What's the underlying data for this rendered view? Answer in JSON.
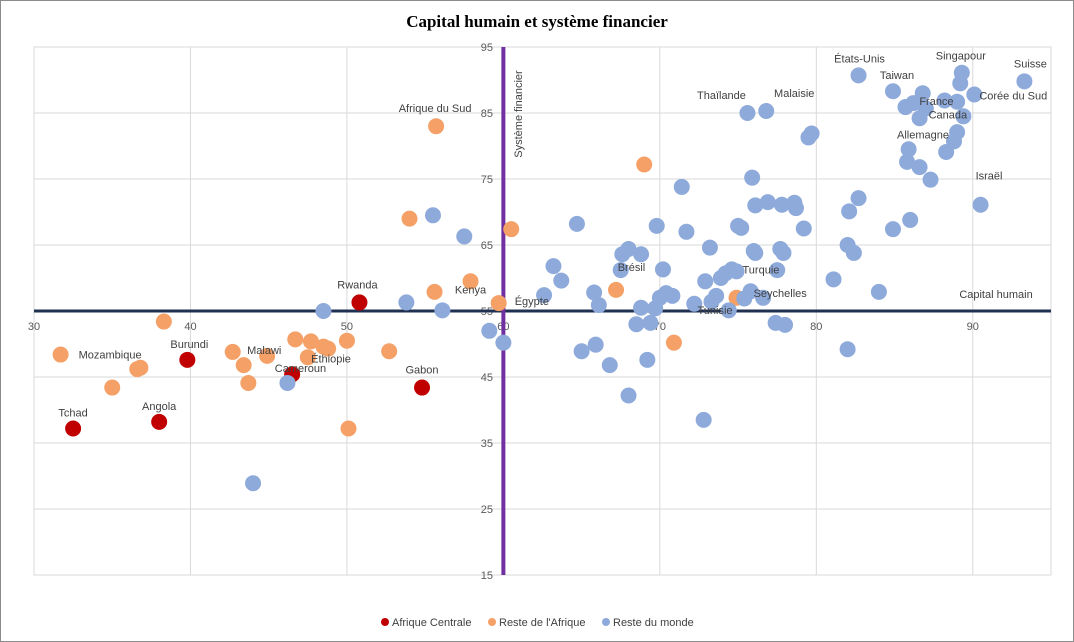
{
  "chart_data": {
    "type": "scatter",
    "title": "Capital humain  et système financier",
    "xlabel": "Capital humain",
    "ylabel": "Système financier",
    "xlim": [
      30,
      95
    ],
    "ylim": [
      15,
      95
    ],
    "x_ticks": [
      "30",
      "40",
      "50",
      "60",
      "70",
      "80",
      "90"
    ],
    "y_ticks": [
      "15",
      "25",
      "35",
      "45",
      "55",
      "65",
      "75",
      "85",
      "95"
    ],
    "crosshair": {
      "x": 60,
      "y": 55
    },
    "grid": true,
    "legend_position": "bottom",
    "colors": {
      "Afrique Centrale": "#C00000",
      "Reste de l'Afrique": "#F4A066",
      "Reste du monde": "#8EAADB",
      "vertical_axis": "#7030A0",
      "horizontal_axis": "#1F3050"
    },
    "series": [
      {
        "name": "Afrique Centrale",
        "points": [
          {
            "x": 32.5,
            "y": 37.2,
            "label": "Tchad"
          },
          {
            "x": 38.0,
            "y": 38.2,
            "label": "Angola"
          },
          {
            "x": 39.8,
            "y": 47.6,
            "label": "Burundi"
          },
          {
            "x": 46.5,
            "y": 45.4,
            "label": ""
          },
          {
            "x": 50.8,
            "y": 56.3,
            "label": "Rwanda"
          },
          {
            "x": 54.8,
            "y": 43.4,
            "label": "Gabon"
          }
        ]
      },
      {
        "name": "Reste de l'Afrique",
        "points": [
          {
            "x": 31.7,
            "y": 48.4,
            "label": "Mozambique"
          },
          {
            "x": 35.0,
            "y": 43.4,
            "label": ""
          },
          {
            "x": 36.6,
            "y": 46.2,
            "label": ""
          },
          {
            "x": 36.8,
            "y": 46.4,
            "label": ""
          },
          {
            "x": 38.3,
            "y": 53.4,
            "label": ""
          },
          {
            "x": 42.7,
            "y": 48.8,
            "label": ""
          },
          {
            "x": 43.4,
            "y": 46.8,
            "label": ""
          },
          {
            "x": 43.7,
            "y": 44.1,
            "label": ""
          },
          {
            "x": 44.9,
            "y": 48.2,
            "label": "Malawi"
          },
          {
            "x": 46.7,
            "y": 50.7,
            "label": ""
          },
          {
            "x": 47.5,
            "y": 48.0,
            "label": "Cameroun"
          },
          {
            "x": 47.7,
            "y": 50.4,
            "label": ""
          },
          {
            "x": 48.5,
            "y": 49.6,
            "label": ""
          },
          {
            "x": 48.8,
            "y": 49.3,
            "label": "Éthiopie"
          },
          {
            "x": 50.0,
            "y": 50.5,
            "label": ""
          },
          {
            "x": 50.1,
            "y": 37.2,
            "label": ""
          },
          {
            "x": 52.7,
            "y": 48.9,
            "label": ""
          },
          {
            "x": 54.0,
            "y": 69.0,
            "label": ""
          },
          {
            "x": 55.7,
            "y": 83.0,
            "label": "Afrique du Sud"
          },
          {
            "x": 55.6,
            "y": 57.9,
            "label": ""
          },
          {
            "x": 57.9,
            "y": 59.5,
            "label": "Kenya"
          },
          {
            "x": 59.7,
            "y": 56.2,
            "label": "Égypte"
          },
          {
            "x": 60.5,
            "y": 67.4,
            "label": ""
          },
          {
            "x": 67.2,
            "y": 58.2,
            "label": ""
          },
          {
            "x": 69.0,
            "y": 77.2,
            "label": ""
          },
          {
            "x": 70.9,
            "y": 50.2,
            "label": ""
          },
          {
            "x": 74.9,
            "y": 57.0,
            "label": ""
          }
        ]
      },
      {
        "name": "Reste du monde",
        "points": [
          {
            "x": 44.0,
            "y": 28.9,
            "label": ""
          },
          {
            "x": 46.2,
            "y": 44.1,
            "label": ""
          },
          {
            "x": 48.5,
            "y": 55.0,
            "label": ""
          },
          {
            "x": 53.8,
            "y": 56.3,
            "label": ""
          },
          {
            "x": 55.5,
            "y": 69.5,
            "label": ""
          },
          {
            "x": 56.1,
            "y": 55.1,
            "label": ""
          },
          {
            "x": 57.5,
            "y": 66.3,
            "label": ""
          },
          {
            "x": 59.1,
            "y": 52.0,
            "label": ""
          },
          {
            "x": 60.0,
            "y": 50.2,
            "label": ""
          },
          {
            "x": 62.6,
            "y": 57.4,
            "label": ""
          },
          {
            "x": 63.2,
            "y": 61.8,
            "label": ""
          },
          {
            "x": 63.7,
            "y": 59.6,
            "label": ""
          },
          {
            "x": 64.7,
            "y": 68.2,
            "label": ""
          },
          {
            "x": 65.0,
            "y": 48.9,
            "label": ""
          },
          {
            "x": 65.8,
            "y": 57.8,
            "label": ""
          },
          {
            "x": 65.9,
            "y": 49.9,
            "label": ""
          },
          {
            "x": 66.1,
            "y": 55.9,
            "label": ""
          },
          {
            "x": 66.8,
            "y": 46.8,
            "label": ""
          },
          {
            "x": 67.5,
            "y": 61.2,
            "label": "Brésil"
          },
          {
            "x": 67.6,
            "y": 63.6,
            "label": ""
          },
          {
            "x": 68.0,
            "y": 42.2,
            "label": ""
          },
          {
            "x": 68.0,
            "y": 64.4,
            "label": ""
          },
          {
            "x": 68.5,
            "y": 53.0,
            "label": ""
          },
          {
            "x": 68.8,
            "y": 63.6,
            "label": ""
          },
          {
            "x": 68.8,
            "y": 55.5,
            "label": ""
          },
          {
            "x": 69.2,
            "y": 47.6,
            "label": ""
          },
          {
            "x": 69.4,
            "y": 53.2,
            "label": ""
          },
          {
            "x": 69.7,
            "y": 55.4,
            "label": ""
          },
          {
            "x": 69.8,
            "y": 67.9,
            "label": ""
          },
          {
            "x": 70.0,
            "y": 57.0,
            "label": ""
          },
          {
            "x": 70.2,
            "y": 61.3,
            "label": ""
          },
          {
            "x": 70.4,
            "y": 57.7,
            "label": ""
          },
          {
            "x": 70.8,
            "y": 57.3,
            "label": ""
          },
          {
            "x": 71.4,
            "y": 73.8,
            "label": ""
          },
          {
            "x": 71.7,
            "y": 67.0,
            "label": ""
          },
          {
            "x": 72.2,
            "y": 56.1,
            "label": ""
          },
          {
            "x": 72.8,
            "y": 38.5,
            "label": ""
          },
          {
            "x": 72.9,
            "y": 59.5,
            "label": ""
          },
          {
            "x": 73.2,
            "y": 64.6,
            "label": ""
          },
          {
            "x": 73.3,
            "y": 56.4,
            "label": "Tunisie"
          },
          {
            "x": 73.6,
            "y": 57.3,
            "label": ""
          },
          {
            "x": 73.9,
            "y": 60.0,
            "label": ""
          },
          {
            "x": 74.2,
            "y": 60.7,
            "label": ""
          },
          {
            "x": 74.4,
            "y": 55.1,
            "label": ""
          },
          {
            "x": 74.6,
            "y": 61.3,
            "label": ""
          },
          {
            "x": 74.9,
            "y": 61.0,
            "label": "Turquie"
          },
          {
            "x": 75.0,
            "y": 67.9,
            "label": ""
          },
          {
            "x": 75.2,
            "y": 67.6,
            "label": ""
          },
          {
            "x": 75.4,
            "y": 56.9,
            "label": ""
          },
          {
            "x": 75.6,
            "y": 85.0,
            "label": "Thaïlande"
          },
          {
            "x": 75.8,
            "y": 58.0,
            "label": "Seychelles"
          },
          {
            "x": 75.9,
            "y": 75.2,
            "label": ""
          },
          {
            "x": 76.0,
            "y": 64.1,
            "label": ""
          },
          {
            "x": 76.1,
            "y": 71.0,
            "label": ""
          },
          {
            "x": 76.1,
            "y": 63.8,
            "label": ""
          },
          {
            "x": 76.6,
            "y": 57.0,
            "label": ""
          },
          {
            "x": 76.8,
            "y": 85.3,
            "label": "Malaisie"
          },
          {
            "x": 76.9,
            "y": 71.5,
            "label": ""
          },
          {
            "x": 77.4,
            "y": 53.2,
            "label": ""
          },
          {
            "x": 77.5,
            "y": 61.2,
            "label": ""
          },
          {
            "x": 77.7,
            "y": 64.4,
            "label": ""
          },
          {
            "x": 77.8,
            "y": 71.1,
            "label": ""
          },
          {
            "x": 77.9,
            "y": 63.8,
            "label": ""
          },
          {
            "x": 78.0,
            "y": 52.9,
            "label": ""
          },
          {
            "x": 78.6,
            "y": 71.4,
            "label": ""
          },
          {
            "x": 78.7,
            "y": 70.6,
            "label": ""
          },
          {
            "x": 79.2,
            "y": 67.5,
            "label": ""
          },
          {
            "x": 79.5,
            "y": 81.3,
            "label": ""
          },
          {
            "x": 79.7,
            "y": 81.9,
            "label": ""
          },
          {
            "x": 81.1,
            "y": 59.8,
            "label": ""
          },
          {
            "x": 82.0,
            "y": 65.0,
            "label": ""
          },
          {
            "x": 82.0,
            "y": 49.2,
            "label": ""
          },
          {
            "x": 82.1,
            "y": 70.1,
            "label": ""
          },
          {
            "x": 82.4,
            "y": 63.8,
            "label": ""
          },
          {
            "x": 82.7,
            "y": 72.1,
            "label": ""
          },
          {
            "x": 82.7,
            "y": 90.7,
            "label": "États-Unis"
          },
          {
            "x": 84.0,
            "y": 57.9,
            "label": ""
          },
          {
            "x": 84.9,
            "y": 67.4,
            "label": ""
          },
          {
            "x": 84.9,
            "y": 88.3,
            "label": "Taiwan"
          },
          {
            "x": 85.7,
            "y": 85.9,
            "label": ""
          },
          {
            "x": 85.8,
            "y": 77.6,
            "label": ""
          },
          {
            "x": 85.9,
            "y": 79.5,
            "label": ""
          },
          {
            "x": 86.0,
            "y": 68.8,
            "label": ""
          },
          {
            "x": 86.2,
            "y": 86.5,
            "label": "France"
          },
          {
            "x": 86.6,
            "y": 84.2,
            "label": "Canada"
          },
          {
            "x": 86.6,
            "y": 76.8,
            "label": ""
          },
          {
            "x": 86.8,
            "y": 88.0,
            "label": ""
          },
          {
            "x": 87.0,
            "y": 85.7,
            "label": ""
          },
          {
            "x": 87.3,
            "y": 74.9,
            "label": ""
          },
          {
            "x": 88.2,
            "y": 86.9,
            "label": ""
          },
          {
            "x": 88.3,
            "y": 79.1,
            "label": ""
          },
          {
            "x": 88.8,
            "y": 80.7,
            "label": "Allemagne"
          },
          {
            "x": 89.0,
            "y": 82.1,
            "label": ""
          },
          {
            "x": 89.0,
            "y": 86.7,
            "label": ""
          },
          {
            "x": 89.2,
            "y": 89.5,
            "label": ""
          },
          {
            "x": 89.3,
            "y": 91.1,
            "label": "Singapour"
          },
          {
            "x": 89.4,
            "y": 84.5,
            "label": ""
          },
          {
            "x": 90.1,
            "y": 87.8,
            "label": "Corée du Sud"
          },
          {
            "x": 90.5,
            "y": 71.1,
            "label": "Israël"
          },
          {
            "x": 93.3,
            "y": 89.8,
            "label": "Suisse"
          }
        ]
      }
    ]
  }
}
